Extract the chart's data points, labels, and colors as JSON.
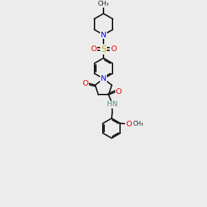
{
  "bg_color": "#ececec",
  "bond_color": "#1a1a1a",
  "colors": {
    "N": "#0000ee",
    "O": "#ee0000",
    "S": "#bbaa00",
    "H": "#558888",
    "C": "#1a1a1a"
  },
  "lw": 1.4,
  "doff": 0.045,
  "xlim": [
    2.5,
    7.5
  ],
  "ylim": [
    0.0,
    17.0
  ],
  "figsize": [
    3.0,
    3.0
  ],
  "dpi": 100
}
